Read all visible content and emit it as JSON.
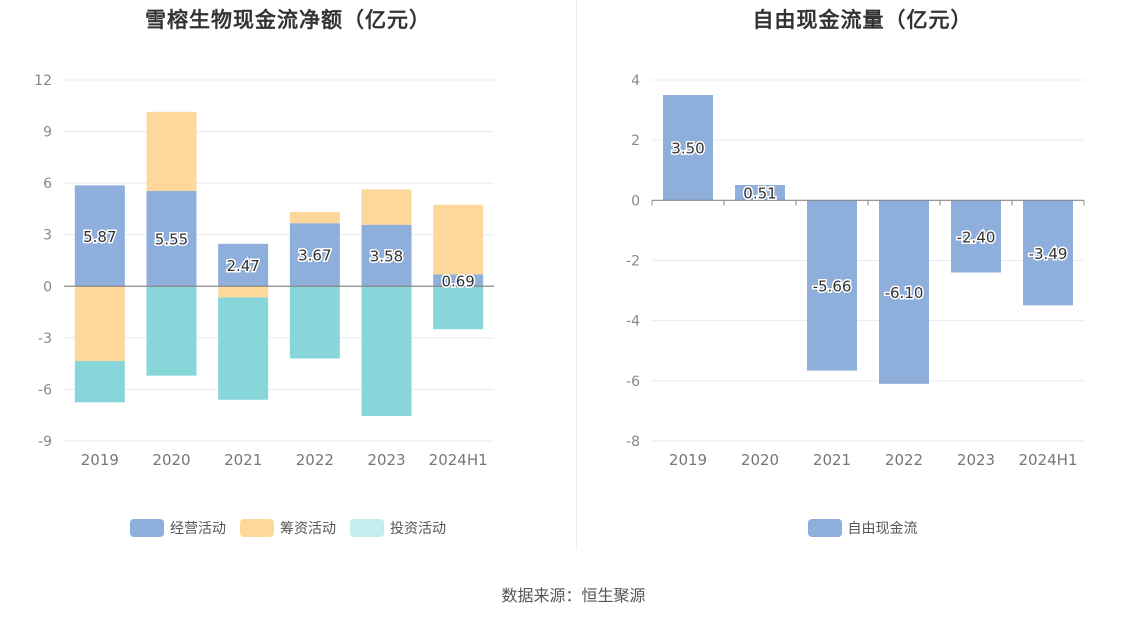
{
  "source": "数据来源：恒生聚源",
  "chart_data": [
    {
      "type": "bar",
      "stacked": true,
      "title": "雪榕生物现金流净额（亿元）",
      "categories": [
        "2019",
        "2020",
        "2021",
        "2022",
        "2023",
        "2024H1"
      ],
      "ylim": [
        -9,
        12
      ],
      "yticks": [
        12,
        9,
        6,
        3,
        0,
        -3,
        -6,
        -9
      ],
      "grid": true,
      "legend_position": "bottom",
      "series": [
        {
          "name": "经营活动",
          "color": "#8eaedb",
          "values": [
            5.87,
            5.55,
            2.47,
            3.67,
            3.58,
            0.69
          ],
          "labels": [
            "5.87",
            "5.55",
            "2.47",
            "3.67",
            "3.58",
            "0.69"
          ]
        },
        {
          "name": "筹资活动",
          "color": "#fdd89a",
          "values": [
            -4.35,
            4.6,
            -0.65,
            0.65,
            2.05,
            4.05
          ]
        },
        {
          "name": "投资活动",
          "color": "#86d6da",
          "legend_color": "#c5ecee",
          "values": [
            -2.4,
            -5.2,
            -5.95,
            -4.2,
            -7.55,
            -2.5
          ]
        }
      ]
    },
    {
      "type": "bar",
      "title": "自由现金流量（亿元）",
      "categories": [
        "2019",
        "2020",
        "2021",
        "2022",
        "2023",
        "2024H1"
      ],
      "ylim": [
        -8,
        4
      ],
      "yticks": [
        4,
        2,
        0,
        -2,
        -4,
        -6,
        -8
      ],
      "grid": true,
      "legend_position": "bottom",
      "series": [
        {
          "name": "自由现金流",
          "color": "#8eaedb",
          "values": [
            3.5,
            0.51,
            -5.66,
            -6.1,
            -2.4,
            -3.49
          ],
          "labels": [
            "3.50",
            "0.51",
            "-5.66",
            "-6.10",
            "-2.40",
            "-3.49"
          ]
        }
      ]
    }
  ]
}
